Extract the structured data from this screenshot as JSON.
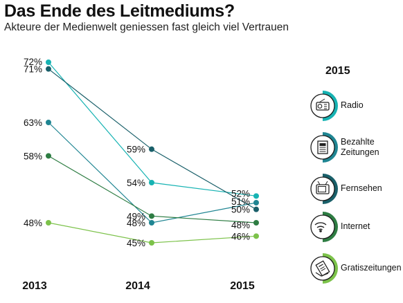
{
  "header": {
    "title": "Das Ende des Leitmediums?",
    "subtitle": "Akteure der Medienwelt geniessen fast gleich viel Vertrauen"
  },
  "legend": {
    "year": "2015",
    "items": [
      {
        "label_lines": [
          "Radio"
        ],
        "icon": "radio-icon",
        "color": "#17b3b3"
      },
      {
        "label_lines": [
          "Bezahlte",
          "Zeitungen"
        ],
        "icon": "newspaper-icon",
        "color": "#1f8592"
      },
      {
        "label_lines": [
          "Fernsehen"
        ],
        "icon": "tv-icon",
        "color": "#195f69"
      },
      {
        "label_lines": [
          "Internet"
        ],
        "icon": "wifi-icon",
        "color": "#2e7d43"
      },
      {
        "label_lines": [
          "Gratiszeitungen"
        ],
        "icon": "free-newspaper-icon",
        "color": "#7cc24a"
      }
    ]
  },
  "chart_data": {
    "type": "line",
    "categories": [
      "2013",
      "2014",
      "2015"
    ],
    "ylim": [
      40,
      75
    ],
    "grid": false,
    "legend_position": "right",
    "series": [
      {
        "name": "Radio",
        "color": "#17b3b3",
        "values": [
          72,
          54,
          52
        ],
        "labels": [
          "72%",
          "54%",
          "52%"
        ]
      },
      {
        "name": "Bezahlte Zeitungen",
        "color": "#1f8592",
        "values": [
          63,
          48,
          51
        ],
        "labels": [
          "63%",
          "48%",
          "51%"
        ]
      },
      {
        "name": "Fernsehen",
        "color": "#195f69",
        "values": [
          71,
          59,
          50
        ],
        "labels": [
          "71%",
          "59%",
          "50%"
        ]
      },
      {
        "name": "Internet",
        "color": "#2e7d43",
        "values": [
          58,
          49,
          48
        ],
        "labels": [
          "58%",
          "49%",
          "48%"
        ]
      },
      {
        "name": "Gratiszeitungen",
        "color": "#7cc24a",
        "values": [
          48,
          45,
          46
        ],
        "labels": [
          "48%",
          "45%",
          "46%"
        ]
      }
    ]
  }
}
